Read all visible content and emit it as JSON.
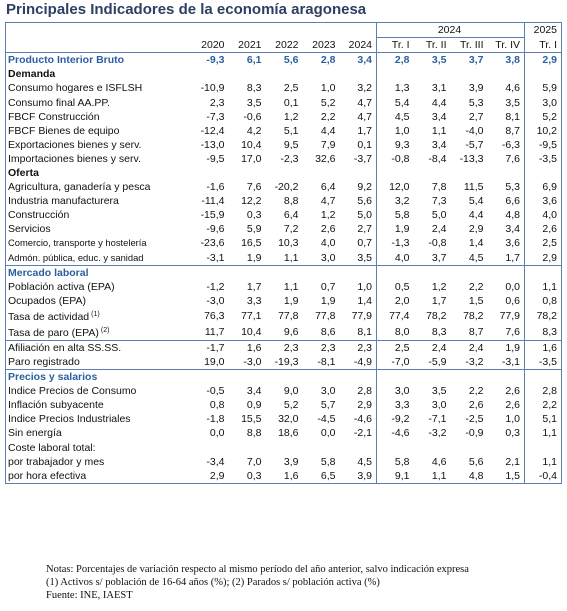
{
  "title": "Principales Indicadores de la economía aragonesa",
  "table": {
    "header_top": [
      {
        "text": "2024",
        "span": 4
      },
      {
        "text": "2025",
        "span": 1
      }
    ],
    "columns": [
      "2020",
      "2021",
      "2022",
      "2023",
      "2024",
      "Tr. I",
      "Tr. II",
      "Tr. III",
      "Tr. IV",
      "Tr. I"
    ],
    "rows": [
      {
        "label": "Producto Interior Bruto",
        "kind": "total",
        "values": [
          "-9,3",
          "6,1",
          "5,6",
          "2,8",
          "3,4",
          "2,8",
          "3,5",
          "3,7",
          "3,8",
          "2,9"
        ]
      },
      {
        "label": "Demanda",
        "kind": "section"
      },
      {
        "label": "Consumo hogares e ISFLSH",
        "kind": "indent",
        "values": [
          "-10,9",
          "8,3",
          "2,5",
          "1,0",
          "3,2",
          "1,3",
          "3,1",
          "3,9",
          "4,6",
          "5,9"
        ]
      },
      {
        "label": "Consumo final AA.PP.",
        "kind": "indent",
        "values": [
          "2,3",
          "3,5",
          "0,1",
          "5,2",
          "4,7",
          "5,4",
          "4,4",
          "5,3",
          "3,5",
          "3,0"
        ]
      },
      {
        "label": "FBCF Construcción",
        "kind": "indent",
        "values": [
          "-7,3",
          "-0,6",
          "1,2",
          "2,2",
          "4,7",
          "4,5",
          "3,4",
          "2,7",
          "8,1",
          "5,2"
        ]
      },
      {
        "label": "FBCF Bienes de equipo",
        "kind": "indent",
        "values": [
          "-12,4",
          "4,2",
          "5,1",
          "4,4",
          "1,7",
          "1,0",
          "1,1",
          "-4,0",
          "8,7",
          "10,2"
        ]
      },
      {
        "label": "Exportaciones bienes y serv.",
        "kind": "indent",
        "values": [
          "-13,0",
          "10,4",
          "9,5",
          "7,9",
          "0,1",
          "9,3",
          "3,4",
          "-5,7",
          "-6,3",
          "-9,5"
        ]
      },
      {
        "label": "Importaciones bienes y serv.",
        "kind": "indent",
        "values": [
          "-9,5",
          "17,0",
          "-2,3",
          "32,6",
          "-3,7",
          "-0,8",
          "-8,4",
          "-13,3",
          "7,6",
          "-3,5"
        ]
      },
      {
        "label": "Oferta",
        "kind": "section"
      },
      {
        "label": "Agricultura, ganadería y pesca",
        "kind": "indent",
        "values": [
          "-1,6",
          "7,6",
          "-20,2",
          "6,4",
          "9,2",
          "12,0",
          "7,8",
          "11,5",
          "5,3",
          "6,9"
        ]
      },
      {
        "label": "Industria manufacturera",
        "kind": "indent",
        "values": [
          "-11,4",
          "12,2",
          "8,8",
          "4,7",
          "5,6",
          "3,2",
          "7,3",
          "5,4",
          "6,6",
          "3,6"
        ]
      },
      {
        "label": "Construcción",
        "kind": "indent",
        "values": [
          "-15,9",
          "0,3",
          "6,4",
          "1,2",
          "5,0",
          "5,8",
          "5,0",
          "4,4",
          "4,8",
          "4,0"
        ]
      },
      {
        "label": "Servicios",
        "kind": "indent",
        "values": [
          "-9,6",
          "5,9",
          "7,2",
          "2,6",
          "2,7",
          "1,9",
          "2,4",
          "2,9",
          "3,4",
          "2,6"
        ]
      },
      {
        "label": "Comercio, transporte y hostelería",
        "kind": "sub",
        "values": [
          "-23,6",
          "16,5",
          "10,3",
          "4,0",
          "0,7",
          "-1,3",
          "-0,8",
          "1,4",
          "3,6",
          "2,5"
        ]
      },
      {
        "label": "Admón. pública, educ. y sanidad",
        "kind": "sub",
        "values": [
          "-3,1",
          "1,9",
          "1,1",
          "3,0",
          "3,5",
          "4,0",
          "3,7",
          "4,5",
          "1,7",
          "2,9"
        ]
      },
      {
        "label": "Mercado laboral",
        "kind": "section-main"
      },
      {
        "label": "Población activa (EPA)",
        "kind": "item",
        "values": [
          "-1,2",
          "1,7",
          "1,1",
          "0,7",
          "1,0",
          "0,5",
          "1,2",
          "2,2",
          "0,0",
          "1,1"
        ]
      },
      {
        "label": "Ocupados (EPA)",
        "kind": "item",
        "values": [
          "-3,0",
          "3,3",
          "1,9",
          "1,9",
          "1,4",
          "2,0",
          "1,7",
          "1,5",
          "0,6",
          "0,8"
        ]
      },
      {
        "label": "Tasa de actividad",
        "sup": "(1)",
        "kind": "item",
        "values": [
          "76,3",
          "77,1",
          "77,8",
          "77,8",
          "77,9",
          "77,4",
          "78,2",
          "78,2",
          "77,9",
          "78,2"
        ]
      },
      {
        "label": "Tasa de paro (EPA)",
        "sup": "(2)",
        "kind": "item",
        "values": [
          "11,7",
          "10,4",
          "9,6",
          "8,6",
          "8,1",
          "8,0",
          "8,3",
          "8,7",
          "7,6",
          "8,3"
        ]
      },
      {
        "label": "Afiliación en alta SS.SS.",
        "kind": "indent",
        "rule": true,
        "values": [
          "-1,7",
          "1,6",
          "2,3",
          "2,3",
          "2,3",
          "2,5",
          "2,4",
          "2,4",
          "1,9",
          "1,6"
        ]
      },
      {
        "label": "Paro registrado",
        "kind": "indent",
        "values": [
          "19,0",
          "-3,0",
          "-19,3",
          "-8,1",
          "-4,9",
          "-7,0",
          "-5,9",
          "-3,2",
          "-3,1",
          "-3,5"
        ]
      },
      {
        "label": "Precios y salarios",
        "kind": "section-main"
      },
      {
        "label": "Indice Precios de Consumo",
        "kind": "item",
        "values": [
          "-0,5",
          "3,4",
          "9,0",
          "3,0",
          "2,8",
          "3,0",
          "3,5",
          "2,2",
          "2,6",
          "2,8"
        ]
      },
      {
        "label": "Inflación subyacente",
        "kind": "item",
        "values": [
          "0,8",
          "0,9",
          "5,2",
          "5,7",
          "2,9",
          "3,3",
          "3,0",
          "2,6",
          "2,6",
          "2,2"
        ]
      },
      {
        "label": "Indice Precios Industriales",
        "kind": "item",
        "values": [
          "-1,8",
          "15,5",
          "32,0",
          "-4,5",
          "-4,6",
          "-9,2",
          "-7,1",
          "-2,5",
          "1,0",
          "5,1"
        ]
      },
      {
        "label": "Sin energía",
        "kind": "indent",
        "values": [
          "0,0",
          "8,8",
          "18,6",
          "0,0",
          "-2,1",
          "-4,6",
          "-3,2",
          "-0,9",
          "0,3",
          "1,1"
        ]
      },
      {
        "label": "Coste laboral total:",
        "kind": "item"
      },
      {
        "label": "por trabajador y mes",
        "kind": "indent",
        "values": [
          "-3,4",
          "7,0",
          "3,9",
          "5,8",
          "4,5",
          "5,8",
          "4,6",
          "5,6",
          "2,1",
          "1,1"
        ]
      },
      {
        "label": "por hora efectiva",
        "kind": "indent",
        "values": [
          "2,9",
          "0,3",
          "1,6",
          "6,5",
          "3,9",
          "9,1",
          "1,1",
          "4,8",
          "1,5",
          "-0,4"
        ]
      }
    ]
  },
  "notes": [
    "Notas: Porcentajes de variación respecto al mismo período del año anterior, salvo indicación expresa",
    "(1) Activos s/ población de 16-64 años (%); (2) Parados s/ población activa (%)",
    "Fuente: INE, IAEST"
  ]
}
